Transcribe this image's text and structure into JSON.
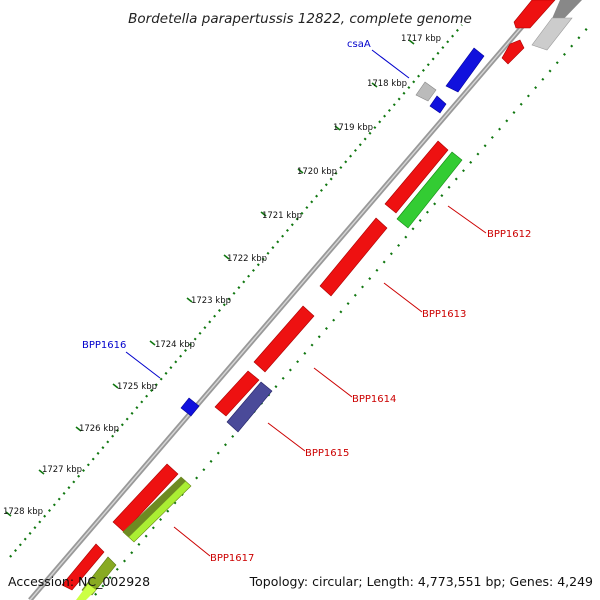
{
  "title": "Bordetella parapertussis 12822, complete genome",
  "accession": "Accession: NC_002928",
  "summary": "Topology: circular; Length: 4,773,551 bp; Genes: 4,249",
  "ticks": [
    "1717 kbp",
    "1718 kbp",
    "1719 kbp",
    "1720 kbp",
    "1721 kbp",
    "1722 kbp",
    "1723 kbp",
    "1724 kbp",
    "1725 kbp",
    "1726 kbp",
    "1727 kbp",
    "1728 kbp"
  ],
  "gene_labels": {
    "csaA": "csaA",
    "BPP1616": "BPP1616",
    "BPP1612": "BPP1612",
    "BPP1613": "BPP1613",
    "BPP1614": "BPP1614",
    "BPP1615": "BPP1615",
    "BPP1617": "BPP1617"
  },
  "colors": {
    "cds_red": "#ee1111",
    "blue": "#1111dd",
    "green": "#33cc33",
    "yellow_green": "#aaee33",
    "slate": "#4a4a99",
    "gray": "#bbbbbb",
    "backbone": "#888888",
    "dots": "#117711",
    "label_red": "#cc0000",
    "label_blue": "#0000cc"
  }
}
